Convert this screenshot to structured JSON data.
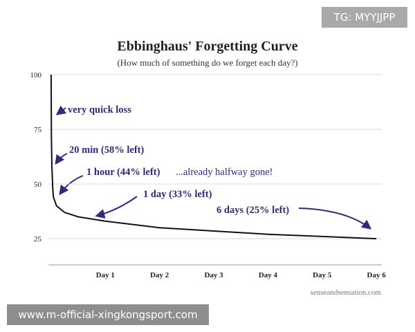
{
  "chart_data": {
    "type": "line",
    "title": "Ebbinghaus' Forgetting Curve",
    "subtitle": "(How much of something do we forget each day?)",
    "source": "senseandsensation.com",
    "watermarks": [
      "TG: MYYJJPP",
      "www.m-official-xingkongsport.com"
    ],
    "x": [
      0,
      0.005,
      0.014,
      0.03,
      0.042,
      0.1,
      0.25,
      0.5,
      1,
      2,
      3,
      4,
      5,
      6
    ],
    "values": [
      100,
      72,
      58,
      48,
      44,
      40,
      37,
      35,
      33,
      30,
      28.5,
      27,
      26,
      25
    ],
    "color": "#111111",
    "xlim": [
      -0.05,
      6.1
    ],
    "xticks": [
      {
        "value": 1,
        "label": "Day 1"
      },
      {
        "value": 2,
        "label": "Day 2"
      },
      {
        "value": 3,
        "label": "Day 3"
      },
      {
        "value": 4,
        "label": "Day 4"
      },
      {
        "value": 5,
        "label": "Day 5"
      },
      {
        "value": 6,
        "label": "Day 6"
      }
    ],
    "ylim": [
      13,
      100
    ],
    "yticks": [
      25,
      50,
      75,
      100
    ],
    "grid": true,
    "annotations": [
      "very quick loss",
      "20 min (58% left)",
      "1 hour (44% left)",
      "...already halfway gone!",
      "1 day (33% left)",
      "6 days (25% left)"
    ]
  }
}
